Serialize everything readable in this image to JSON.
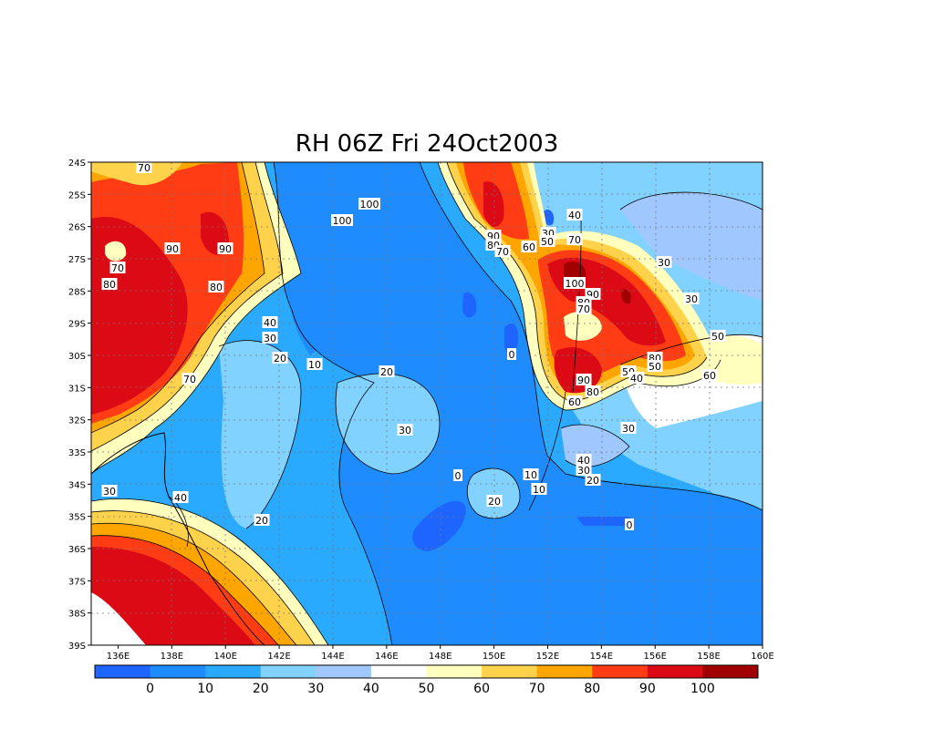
{
  "title": "RH 06Z Fri 24Oct2003",
  "map": {
    "lon_ticks": [
      "136E",
      "138E",
      "140E",
      "142E",
      "144E",
      "146E",
      "148E",
      "150E",
      "152E",
      "154E",
      "156E",
      "158E",
      "160E"
    ],
    "lat_ticks": [
      "24S",
      "25S",
      "26S",
      "27S",
      "28S",
      "29S",
      "30S",
      "31S",
      "32S",
      "33S",
      "34S",
      "35S",
      "36S",
      "37S",
      "38S",
      "39S"
    ],
    "lon_range": [
      135,
      160
    ],
    "lat_range": [
      -24,
      -39
    ]
  },
  "colorbar": {
    "labels": [
      "0",
      "10",
      "20",
      "30",
      "40",
      "50",
      "60",
      "70",
      "80",
      "90",
      "100"
    ],
    "colors": [
      "#1e64ff",
      "#1e8cff",
      "#2aaaff",
      "#82d2ff",
      "#a0c8ff",
      "#ffffff",
      "#ffffbe",
      "#ffd24b",
      "#ffa500",
      "#ff3c14",
      "#dc0a14",
      "#a00000"
    ]
  },
  "contour_labels": [
    "0",
    "10",
    "20",
    "30",
    "40",
    "50",
    "60",
    "70",
    "80",
    "90",
    "100"
  ],
  "chart_data": {
    "type": "heatmap",
    "title": "RH 06Z Fri 24Oct2003",
    "x_ticks": [
      "136E",
      "138E",
      "140E",
      "142E",
      "144E",
      "146E",
      "148E",
      "150E",
      "152E",
      "154E",
      "156E",
      "158E",
      "160E"
    ],
    "y_ticks": [
      "24S",
      "25S",
      "26S",
      "27S",
      "28S",
      "29S",
      "30S",
      "31S",
      "32S",
      "33S",
      "34S",
      "35S",
      "36S",
      "37S",
      "38S",
      "39S"
    ],
    "levels": [
      0,
      10,
      20,
      30,
      40,
      50,
      60,
      70,
      80,
      90,
      100
    ],
    "grid": true,
    "legend": "bottom"
  }
}
